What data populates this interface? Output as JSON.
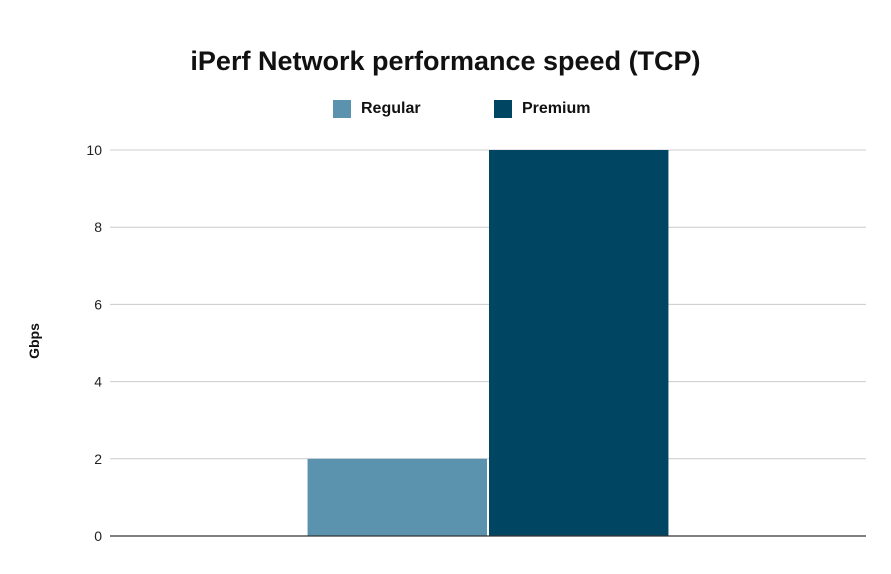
{
  "chart_data": {
    "type": "bar",
    "title": "iPerf Network performance speed (TCP)",
    "xlabel": "",
    "ylabel": "Gbps",
    "categories": [
      ""
    ],
    "series": [
      {
        "name": "Regular",
        "values": [
          2
        ],
        "color": "#5b92ae"
      },
      {
        "name": "Premium",
        "values": [
          10
        ],
        "color": "#004561"
      }
    ],
    "ylim": [
      0,
      10
    ],
    "yticks": [
      0,
      2,
      4,
      6,
      8,
      10
    ],
    "grid": true,
    "legend_position": "top"
  }
}
